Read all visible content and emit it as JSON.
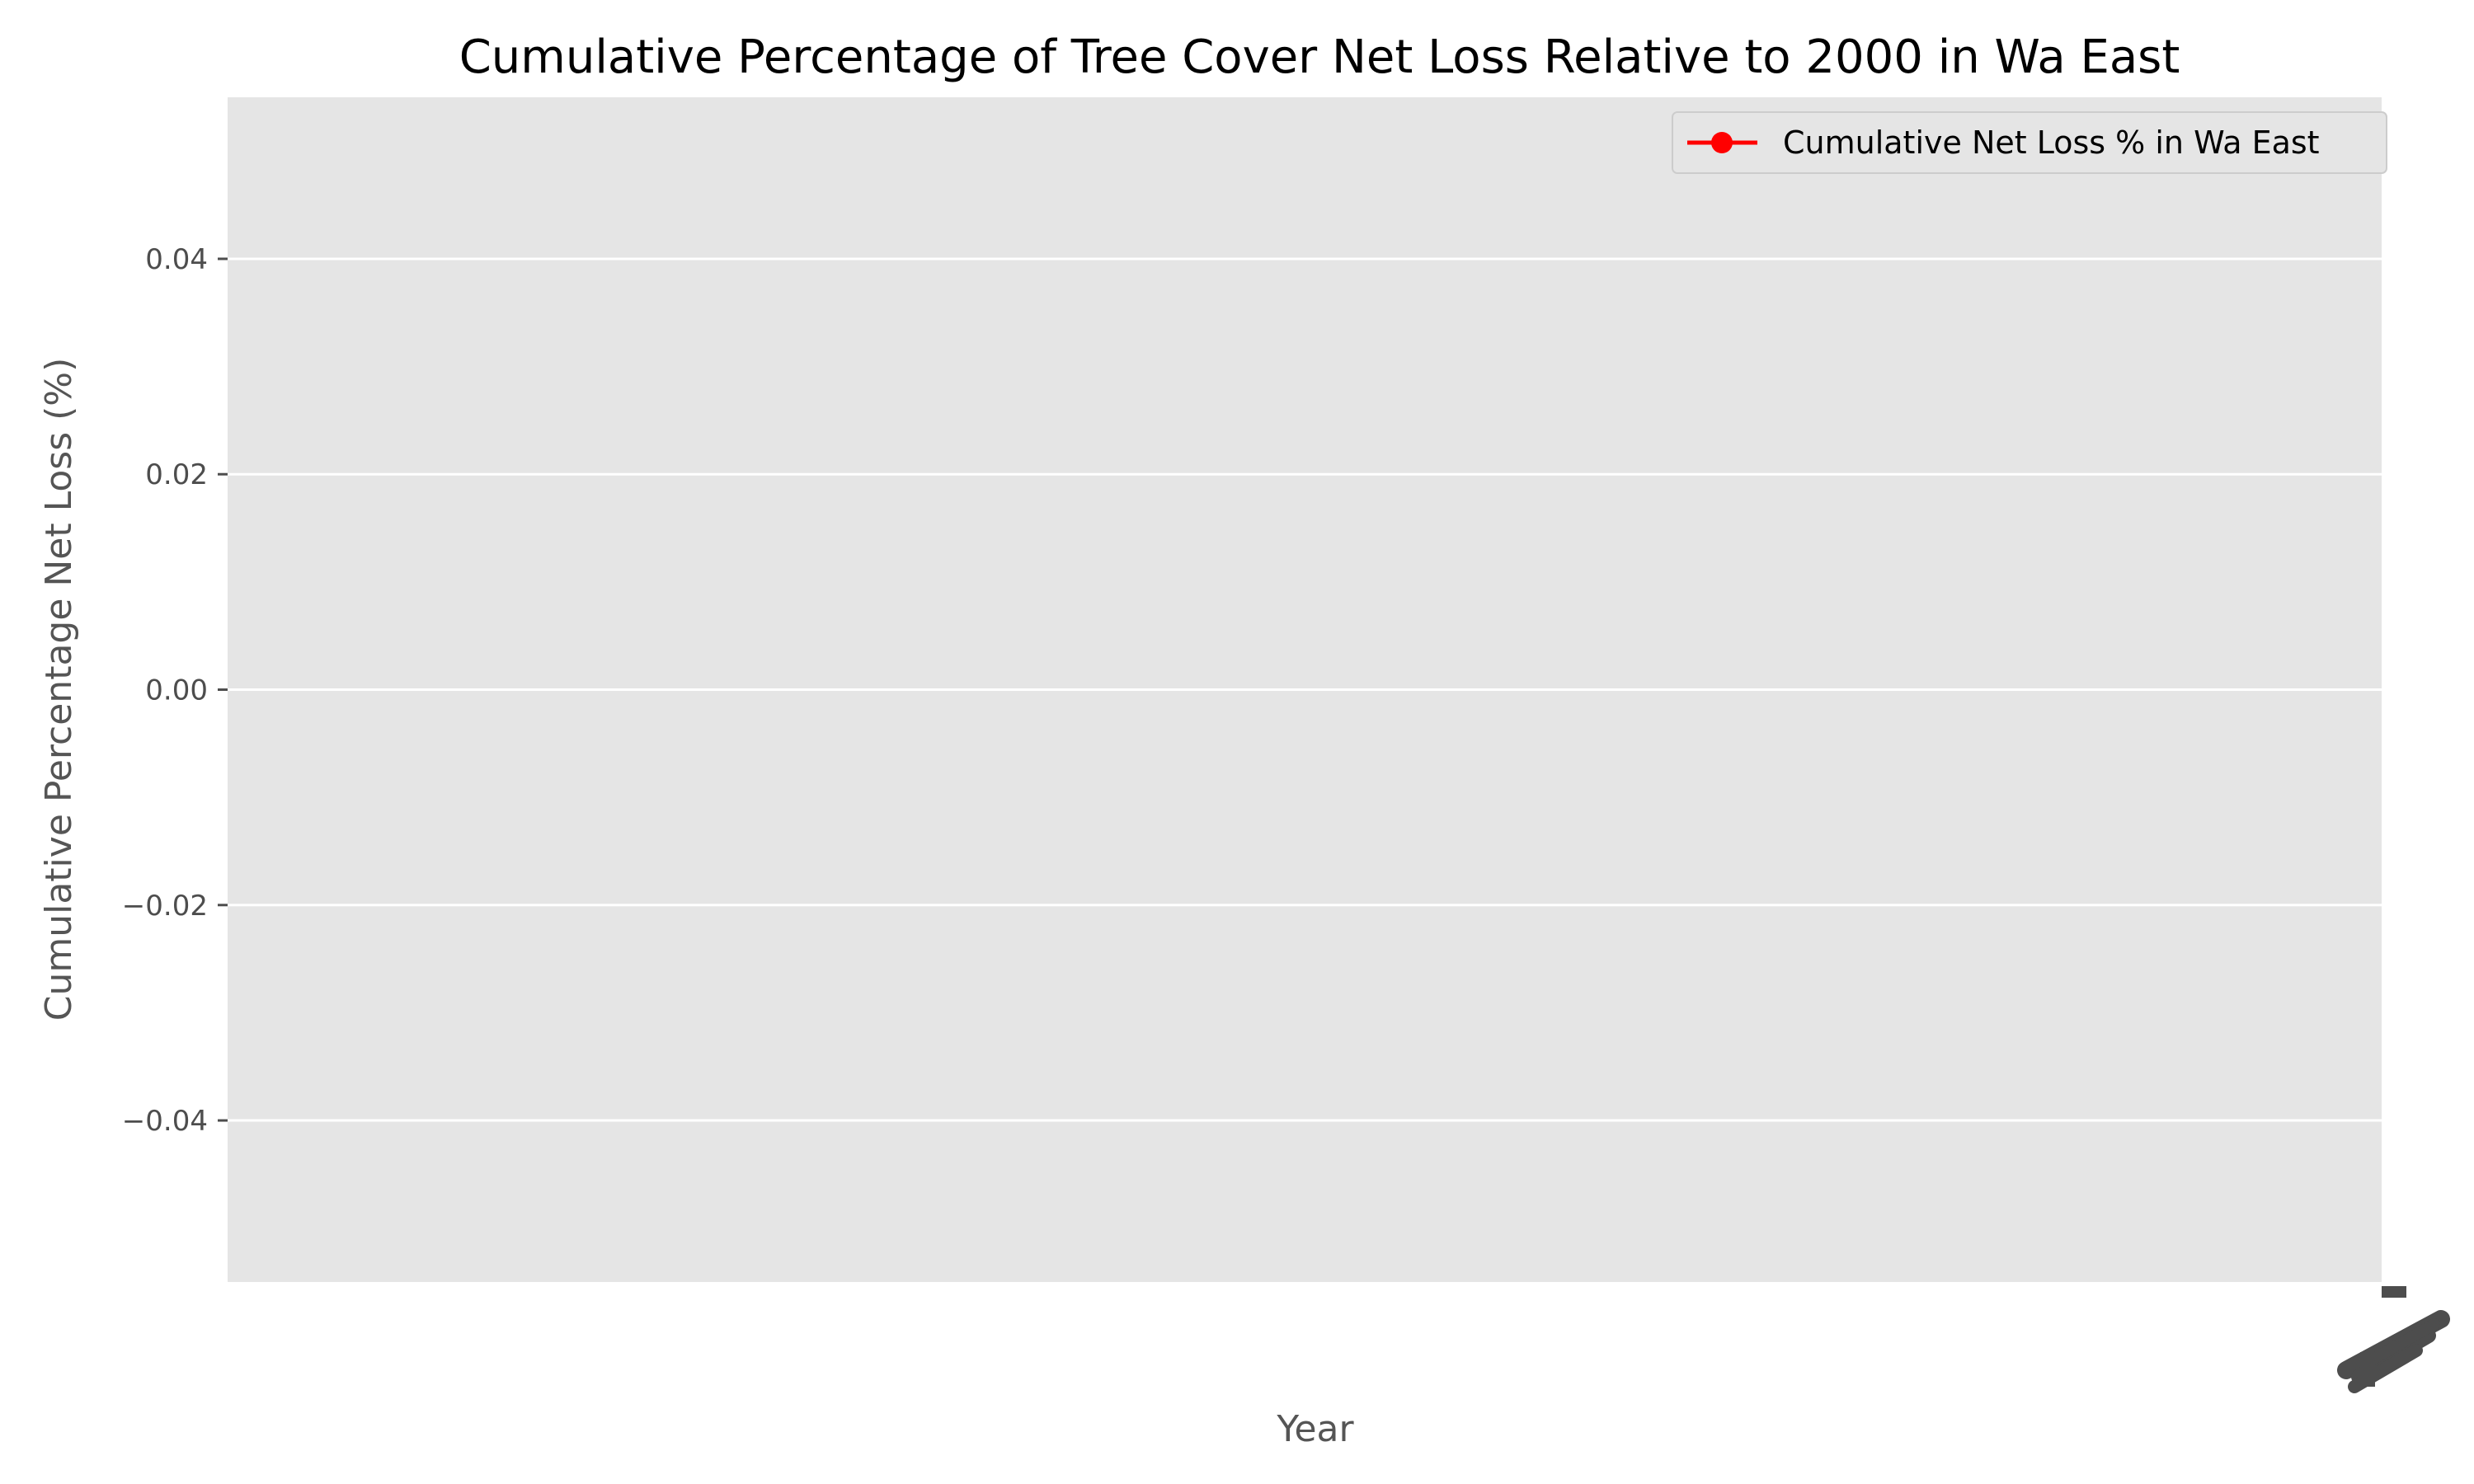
{
  "chart_data": {
    "type": "line",
    "title": "Cumulative Percentage of Tree Cover Net Loss Relative to 2000 in Wa East",
    "xlabel": "Year",
    "ylabel": "Cumulative Percentage Net Loss (%)",
    "ylim": [
      -0.055,
      0.055
    ],
    "yticks": [
      0.04,
      0.02,
      0.0,
      -0.02,
      -0.04
    ],
    "ytick_labels": [
      "0.04",
      "0.02",
      "0.00",
      "−0.02",
      "−0.04"
    ],
    "grid": true,
    "legend_position": "top-right",
    "series": [
      {
        "name": "Cumulative Net Loss % in Wa East",
        "color": "#ff0000",
        "marker": "circle",
        "x": [],
        "y": []
      }
    ]
  },
  "colors": {
    "plot_background": "#e5e5e5",
    "grid": "#ffffff",
    "tick_text": "#4d4d4d"
  }
}
